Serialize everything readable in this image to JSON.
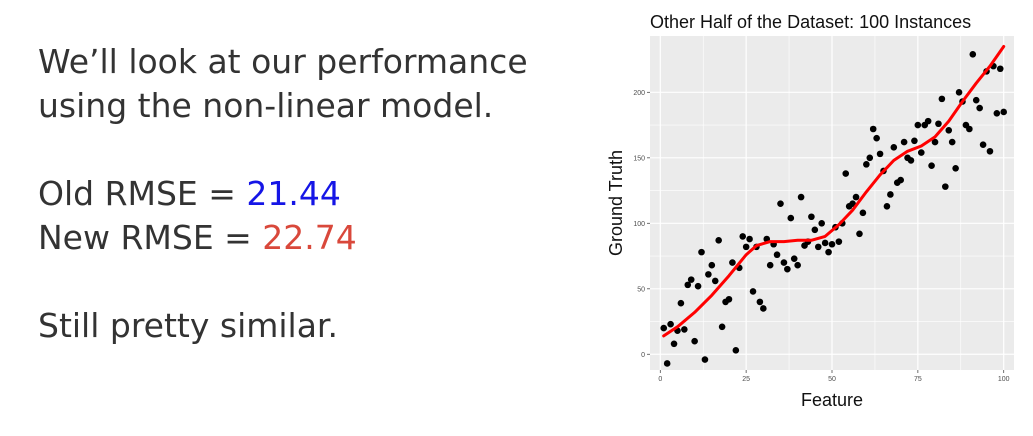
{
  "slide": {
    "line1": "We’ll look at our performance",
    "line2": "using the non-linear model.",
    "old_rmse_label": "Old RMSE = ",
    "old_rmse_value": "21.44",
    "new_rmse_label": "New RMSE = ",
    "new_rmse_value": "22.74",
    "conclusion": "Still pretty similar."
  },
  "colors": {
    "text": "#333333",
    "old_rmse": "#1515e6",
    "new_rmse": "#d9483b",
    "panel_bg": "#ebebeb",
    "grid": "#ffffff",
    "points": "#000000",
    "fit_line": "#ff0000"
  },
  "chart_data": {
    "type": "scatter",
    "title": "Other Half of the Dataset: 100 Instances",
    "xlabel": "Feature",
    "ylabel": "Ground Truth",
    "xlim": [
      -3,
      103
    ],
    "ylim": [
      -12,
      243
    ],
    "xticks": [
      0,
      25,
      50,
      75,
      100
    ],
    "yticks": [
      0,
      50,
      100,
      150,
      200
    ],
    "grid": true,
    "points": [
      [
        1,
        20
      ],
      [
        2,
        -7
      ],
      [
        3,
        23
      ],
      [
        4,
        8
      ],
      [
        5,
        18
      ],
      [
        6,
        39
      ],
      [
        7,
        19
      ],
      [
        8,
        53
      ],
      [
        9,
        57
      ],
      [
        10,
        10
      ],
      [
        11,
        52
      ],
      [
        12,
        78
      ],
      [
        13,
        -4
      ],
      [
        14,
        61
      ],
      [
        15,
        68
      ],
      [
        16,
        56
      ],
      [
        17,
        87
      ],
      [
        18,
        21
      ],
      [
        19,
        40
      ],
      [
        20,
        42
      ],
      [
        21,
        70
      ],
      [
        22,
        3
      ],
      [
        23,
        66
      ],
      [
        24,
        90
      ],
      [
        25,
        82
      ],
      [
        26,
        88
      ],
      [
        27,
        48
      ],
      [
        28,
        82
      ],
      [
        29,
        40
      ],
      [
        30,
        35
      ],
      [
        31,
        88
      ],
      [
        32,
        68
      ],
      [
        33,
        84
      ],
      [
        34,
        76
      ],
      [
        35,
        115
      ],
      [
        36,
        70
      ],
      [
        37,
        65
      ],
      [
        38,
        104
      ],
      [
        39,
        73
      ],
      [
        40,
        68
      ],
      [
        41,
        120
      ],
      [
        42,
        83
      ],
      [
        43,
        86
      ],
      [
        44,
        105
      ],
      [
        45,
        95
      ],
      [
        46,
        82
      ],
      [
        47,
        100
      ],
      [
        48,
        85
      ],
      [
        49,
        78
      ],
      [
        50,
        84
      ],
      [
        51,
        97
      ],
      [
        52,
        86
      ],
      [
        53,
        100
      ],
      [
        54,
        138
      ],
      [
        55,
        113
      ],
      [
        56,
        115
      ],
      [
        57,
        120
      ],
      [
        58,
        92
      ],
      [
        59,
        108
      ],
      [
        60,
        145
      ],
      [
        61,
        150
      ],
      [
        62,
        172
      ],
      [
        63,
        165
      ],
      [
        64,
        153
      ],
      [
        65,
        140
      ],
      [
        66,
        113
      ],
      [
        67,
        122
      ],
      [
        68,
        158
      ],
      [
        69,
        131
      ],
      [
        70,
        133
      ],
      [
        71,
        162
      ],
      [
        72,
        150
      ],
      [
        73,
        148
      ],
      [
        74,
        163
      ],
      [
        75,
        175
      ],
      [
        76,
        154
      ],
      [
        77,
        175
      ],
      [
        78,
        178
      ],
      [
        79,
        144
      ],
      [
        80,
        162
      ],
      [
        81,
        176
      ],
      [
        82,
        195
      ],
      [
        83,
        128
      ],
      [
        84,
        171
      ],
      [
        85,
        162
      ],
      [
        86,
        142
      ],
      [
        87,
        200
      ],
      [
        88,
        193
      ],
      [
        89,
        175
      ],
      [
        90,
        172
      ],
      [
        91,
        229
      ],
      [
        92,
        194
      ],
      [
        93,
        188
      ],
      [
        94,
        160
      ],
      [
        95,
        216
      ],
      [
        96,
        155
      ],
      [
        97,
        220
      ],
      [
        98,
        184
      ],
      [
        99,
        218
      ],
      [
        100,
        185
      ]
    ],
    "fit_line": [
      [
        1,
        14
      ],
      [
        5,
        21
      ],
      [
        10,
        32
      ],
      [
        15,
        45
      ],
      [
        20,
        60
      ],
      [
        25,
        76
      ],
      [
        28,
        83
      ],
      [
        32,
        86
      ],
      [
        36,
        86
      ],
      [
        40,
        87
      ],
      [
        44,
        87
      ],
      [
        48,
        90
      ],
      [
        52,
        99
      ],
      [
        56,
        110
      ],
      [
        60,
        124
      ],
      [
        64,
        137
      ],
      [
        68,
        148
      ],
      [
        72,
        155
      ],
      [
        76,
        159
      ],
      [
        80,
        166
      ],
      [
        84,
        178
      ],
      [
        88,
        193
      ],
      [
        92,
        207
      ],
      [
        96,
        220
      ],
      [
        100,
        235
      ]
    ]
  }
}
